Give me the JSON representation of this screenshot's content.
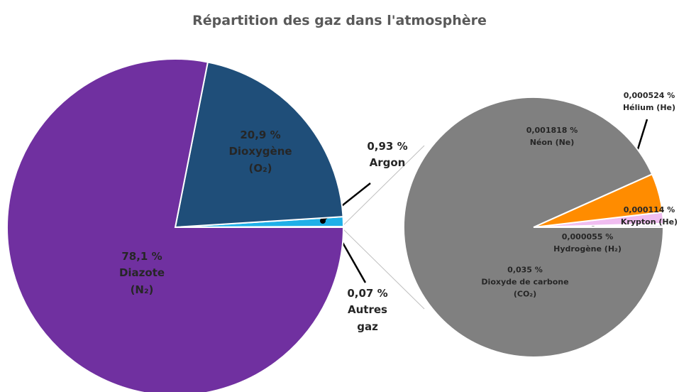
{
  "chart_data": [
    {
      "type": "pie",
      "title": "Répartition des gaz dans l'atmosphère",
      "categories": [
        "Autres gaz",
        "Argon",
        "Dioxygène (O₂)",
        "Diazote (N₂)"
      ],
      "values": [
        0.07,
        0.93,
        20.9,
        78.1
      ],
      "value_labels": [
        "0,07 %",
        "0,93 %",
        "20,9 %",
        "78,1 %"
      ],
      "colors": [
        "#ffc000",
        "#1fb0e8",
        "#1f4e79",
        "#7030a0"
      ]
    },
    {
      "type": "pie",
      "categories": [
        "Krypton (He)",
        "Hydrogène (H₂)",
        "Hélium (He)",
        "Néon (Ne)",
        "Dioxyde de carbone (CO₂)"
      ],
      "values": [
        0.000114,
        5.5e-05,
        0.000524,
        0.001818,
        0.035
      ],
      "value_labels": [
        "0,000114 %",
        "0,000055 %",
        "0,000524 %",
        "0,001818 %",
        "0,035 %"
      ],
      "colors": [
        "#ece4f2",
        "#7b2446",
        "#f0bdf0",
        "#ff8c00",
        "#808080"
      ]
    }
  ]
}
